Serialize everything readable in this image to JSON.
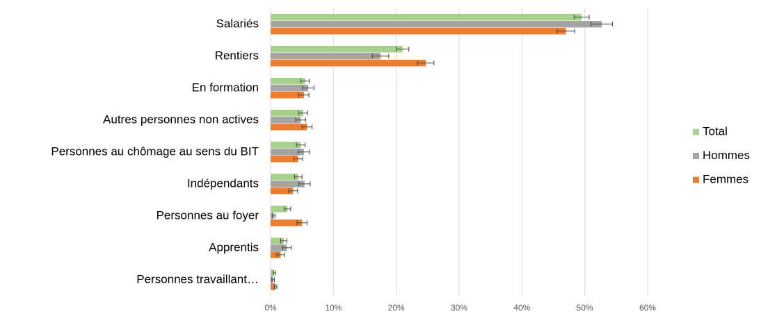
{
  "chart_data": {
    "type": "hbar",
    "categories": [
      "Salariés",
      "Rentiers",
      "En formation",
      "Autres personnes non actives",
      "Personnes au chômage au sens du BIT",
      "Indépendants",
      "Personnes au foyer",
      "Apprentis",
      "Personnes travaillant…"
    ],
    "series": [
      {
        "name": "Total",
        "color": "#a9d18e",
        "values": [
          49.5,
          21,
          5.5,
          5.2,
          4.8,
          4.4,
          2.7,
          2.1,
          0.6
        ],
        "errors": [
          1.2,
          1,
          0.7,
          0.7,
          0.7,
          0.6,
          0.5,
          0.5,
          0.2
        ]
      },
      {
        "name": "Hommes",
        "color": "#a5a5a5",
        "values": [
          52.7,
          17.5,
          6,
          4.8,
          5.3,
          5.4,
          0.5,
          2.6,
          0.4
        ],
        "errors": [
          1.7,
          1.3,
          0.9,
          0.8,
          0.9,
          0.9,
          0.2,
          0.7,
          0.2
        ]
      },
      {
        "name": "Femmes",
        "color": "#ed7d31",
        "values": [
          47,
          24.7,
          5.3,
          5.8,
          4.4,
          3.6,
          5,
          1.6,
          0.8
        ],
        "errors": [
          1.4,
          1.3,
          0.8,
          0.8,
          0.7,
          0.7,
          0.8,
          0.6,
          0.2
        ]
      }
    ],
    "xlim": [
      0,
      60
    ],
    "xticks": [
      {
        "value": 0,
        "label": "0%"
      },
      {
        "value": 10,
        "label": "10%"
      },
      {
        "value": 20,
        "label": "20%"
      },
      {
        "value": 30,
        "label": "30%"
      },
      {
        "value": 40,
        "label": "40%"
      },
      {
        "value": 50,
        "label": "50%"
      },
      {
        "value": 60,
        "label": "60%"
      }
    ],
    "grid": true,
    "legend": "right"
  }
}
